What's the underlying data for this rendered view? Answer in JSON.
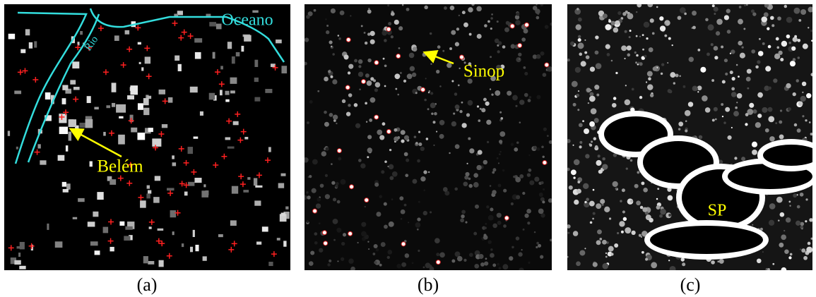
{
  "panels": [
    {
      "label": "(a)",
      "annotations": [
        "Oceano",
        "Rio",
        "Belém"
      ]
    },
    {
      "label": "(b)",
      "annotations": [
        "Sinop"
      ]
    },
    {
      "label": "(c)",
      "annotations": [
        "SP"
      ]
    }
  ]
}
